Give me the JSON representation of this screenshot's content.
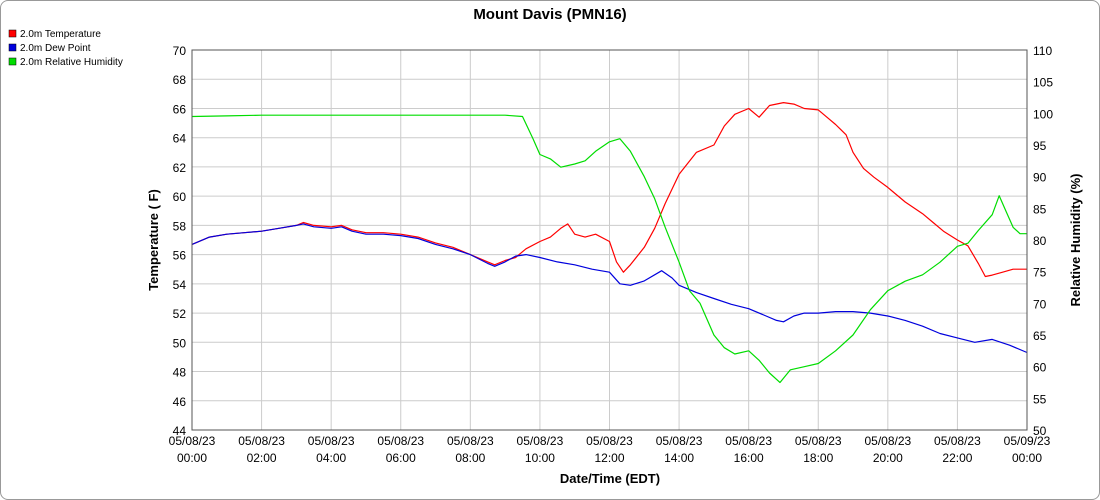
{
  "chart_data": {
    "type": "line",
    "title": "Mount Davis (PMN16)",
    "xlabel": "Date/Time (EDT)",
    "ylabel_left": "Temperature ( F)",
    "ylabel_right": "Relative Humidity (%)",
    "ylim_left": [
      44,
      70
    ],
    "ylim_right": [
      50,
      110
    ],
    "y_ticks_left": [
      44,
      46,
      48,
      50,
      52,
      54,
      56,
      58,
      60,
      62,
      64,
      66,
      68,
      70
    ],
    "y_ticks_right": [
      50,
      55,
      60,
      65,
      70,
      75,
      80,
      85,
      90,
      95,
      100,
      105,
      110
    ],
    "xlim": [
      0,
      24
    ],
    "x_ticks": [
      {
        "x": 0,
        "date": "05/08/23",
        "time": "00:00"
      },
      {
        "x": 2,
        "date": "05/08/23",
        "time": "02:00"
      },
      {
        "x": 4,
        "date": "05/08/23",
        "time": "04:00"
      },
      {
        "x": 6,
        "date": "05/08/23",
        "time": "06:00"
      },
      {
        "x": 8,
        "date": "05/08/23",
        "time": "08:00"
      },
      {
        "x": 10,
        "date": "05/08/23",
        "time": "10:00"
      },
      {
        "x": 12,
        "date": "05/08/23",
        "time": "12:00"
      },
      {
        "x": 14,
        "date": "05/08/23",
        "time": "14:00"
      },
      {
        "x": 16,
        "date": "05/08/23",
        "time": "16:00"
      },
      {
        "x": 18,
        "date": "05/08/23",
        "time": "18:00"
      },
      {
        "x": 20,
        "date": "05/08/23",
        "time": "20:00"
      },
      {
        "x": 22,
        "date": "05/08/23",
        "time": "22:00"
      },
      {
        "x": 24,
        "date": "05/09/23",
        "time": "00:00"
      }
    ],
    "grid": true,
    "legend_position": "top-left",
    "series": [
      {
        "name": "2.0m Temperature",
        "color": "#ff0000",
        "axis": "left",
        "points": [
          [
            0,
            56.7
          ],
          [
            0.5,
            57.2
          ],
          [
            1,
            57.4
          ],
          [
            1.5,
            57.5
          ],
          [
            2,
            57.6
          ],
          [
            2.5,
            57.8
          ],
          [
            3,
            58.0
          ],
          [
            3.2,
            58.2
          ],
          [
            3.5,
            58.0
          ],
          [
            4,
            57.9
          ],
          [
            4.3,
            58.0
          ],
          [
            4.6,
            57.7
          ],
          [
            5,
            57.5
          ],
          [
            5.5,
            57.5
          ],
          [
            6,
            57.4
          ],
          [
            6.5,
            57.2
          ],
          [
            7,
            56.8
          ],
          [
            7.5,
            56.5
          ],
          [
            8,
            56.0
          ],
          [
            8.5,
            55.5
          ],
          [
            8.7,
            55.3
          ],
          [
            9,
            55.6
          ],
          [
            9.3,
            55.8
          ],
          [
            9.6,
            56.4
          ],
          [
            10,
            56.9
          ],
          [
            10.3,
            57.2
          ],
          [
            10.6,
            57.8
          ],
          [
            10.8,
            58.1
          ],
          [
            11,
            57.4
          ],
          [
            11.3,
            57.2
          ],
          [
            11.6,
            57.4
          ],
          [
            12,
            56.9
          ],
          [
            12.2,
            55.5
          ],
          [
            12.4,
            54.8
          ],
          [
            12.6,
            55.3
          ],
          [
            13,
            56.5
          ],
          [
            13.3,
            57.8
          ],
          [
            13.6,
            59.5
          ],
          [
            14,
            61.5
          ],
          [
            14.5,
            63.0
          ],
          [
            15,
            63.5
          ],
          [
            15.3,
            64.8
          ],
          [
            15.6,
            65.6
          ],
          [
            16,
            66.0
          ],
          [
            16.3,
            65.4
          ],
          [
            16.6,
            66.2
          ],
          [
            17,
            66.4
          ],
          [
            17.3,
            66.3
          ],
          [
            17.6,
            66.0
          ],
          [
            18,
            65.9
          ],
          [
            18.3,
            65.3
          ],
          [
            18.5,
            64.9
          ],
          [
            18.8,
            64.2
          ],
          [
            19,
            63.0
          ],
          [
            19.3,
            61.9
          ],
          [
            19.6,
            61.3
          ],
          [
            20,
            60.6
          ],
          [
            20.5,
            59.6
          ],
          [
            21,
            58.8
          ],
          [
            21.3,
            58.2
          ],
          [
            21.6,
            57.6
          ],
          [
            22,
            57.0
          ],
          [
            22.3,
            56.6
          ],
          [
            22.6,
            55.4
          ],
          [
            22.8,
            54.5
          ],
          [
            23,
            54.6
          ],
          [
            23.3,
            54.8
          ],
          [
            23.6,
            55.0
          ],
          [
            24,
            55.0
          ]
        ]
      },
      {
        "name": "2.0m Dew Point",
        "color": "#0000dd",
        "axis": "left",
        "points": [
          [
            0,
            56.7
          ],
          [
            0.5,
            57.2
          ],
          [
            1,
            57.4
          ],
          [
            1.5,
            57.5
          ],
          [
            2,
            57.6
          ],
          [
            2.5,
            57.8
          ],
          [
            3,
            58.0
          ],
          [
            3.2,
            58.1
          ],
          [
            3.5,
            57.9
          ],
          [
            4,
            57.8
          ],
          [
            4.3,
            57.9
          ],
          [
            4.6,
            57.6
          ],
          [
            5,
            57.4
          ],
          [
            5.5,
            57.4
          ],
          [
            6,
            57.3
          ],
          [
            6.5,
            57.1
          ],
          [
            7,
            56.7
          ],
          [
            7.5,
            56.4
          ],
          [
            8,
            56.0
          ],
          [
            8.5,
            55.4
          ],
          [
            8.7,
            55.2
          ],
          [
            9,
            55.5
          ],
          [
            9.3,
            55.9
          ],
          [
            9.6,
            56.0
          ],
          [
            10,
            55.8
          ],
          [
            10.5,
            55.5
          ],
          [
            11,
            55.3
          ],
          [
            11.5,
            55.0
          ],
          [
            12,
            54.8
          ],
          [
            12.3,
            54.0
          ],
          [
            12.6,
            53.9
          ],
          [
            13,
            54.2
          ],
          [
            13.5,
            54.9
          ],
          [
            13.8,
            54.4
          ],
          [
            14,
            53.9
          ],
          [
            14.5,
            53.4
          ],
          [
            15,
            53.0
          ],
          [
            15.5,
            52.6
          ],
          [
            16,
            52.3
          ],
          [
            16.5,
            51.8
          ],
          [
            16.8,
            51.5
          ],
          [
            17,
            51.4
          ],
          [
            17.3,
            51.8
          ],
          [
            17.6,
            52.0
          ],
          [
            18,
            52.0
          ],
          [
            18.5,
            52.1
          ],
          [
            19,
            52.1
          ],
          [
            19.5,
            52.0
          ],
          [
            20,
            51.8
          ],
          [
            20.5,
            51.5
          ],
          [
            21,
            51.1
          ],
          [
            21.5,
            50.6
          ],
          [
            22,
            50.3
          ],
          [
            22.5,
            50.0
          ],
          [
            23,
            50.2
          ],
          [
            23.5,
            49.8
          ],
          [
            24,
            49.3
          ]
        ]
      },
      {
        "name": "2.0m Relative Humidity",
        "color": "#00dd00",
        "axis": "right",
        "points": [
          [
            0,
            99.5
          ],
          [
            1,
            99.6
          ],
          [
            2,
            99.7
          ],
          [
            3,
            99.7
          ],
          [
            4,
            99.7
          ],
          [
            5,
            99.7
          ],
          [
            6,
            99.7
          ],
          [
            7,
            99.7
          ],
          [
            8,
            99.7
          ],
          [
            9,
            99.7
          ],
          [
            9.5,
            99.5
          ],
          [
            9.8,
            96.0
          ],
          [
            10,
            93.5
          ],
          [
            10.3,
            92.8
          ],
          [
            10.6,
            91.5
          ],
          [
            11,
            92.0
          ],
          [
            11.3,
            92.5
          ],
          [
            11.6,
            94.0
          ],
          [
            12,
            95.5
          ],
          [
            12.3,
            96.0
          ],
          [
            12.6,
            94.0
          ],
          [
            13,
            90.0
          ],
          [
            13.3,
            86.5
          ],
          [
            13.6,
            82.0
          ],
          [
            14,
            76.5
          ],
          [
            14.3,
            72.0
          ],
          [
            14.6,
            70.0
          ],
          [
            15,
            65.0
          ],
          [
            15.3,
            63.0
          ],
          [
            15.6,
            62.0
          ],
          [
            16,
            62.5
          ],
          [
            16.3,
            61.0
          ],
          [
            16.6,
            59.0
          ],
          [
            16.9,
            57.5
          ],
          [
            17.2,
            59.5
          ],
          [
            17.6,
            60.0
          ],
          [
            18,
            60.5
          ],
          [
            18.5,
            62.5
          ],
          [
            19,
            65.0
          ],
          [
            19.5,
            69.0
          ],
          [
            20,
            72.0
          ],
          [
            20.5,
            73.5
          ],
          [
            21,
            74.5
          ],
          [
            21.5,
            76.5
          ],
          [
            22,
            79.0
          ],
          [
            22.3,
            79.5
          ],
          [
            22.6,
            81.5
          ],
          [
            23,
            84.0
          ],
          [
            23.2,
            87.0
          ],
          [
            23.4,
            84.5
          ],
          [
            23.6,
            82.0
          ],
          [
            23.8,
            81.0
          ],
          [
            24,
            81.0
          ]
        ]
      }
    ]
  }
}
